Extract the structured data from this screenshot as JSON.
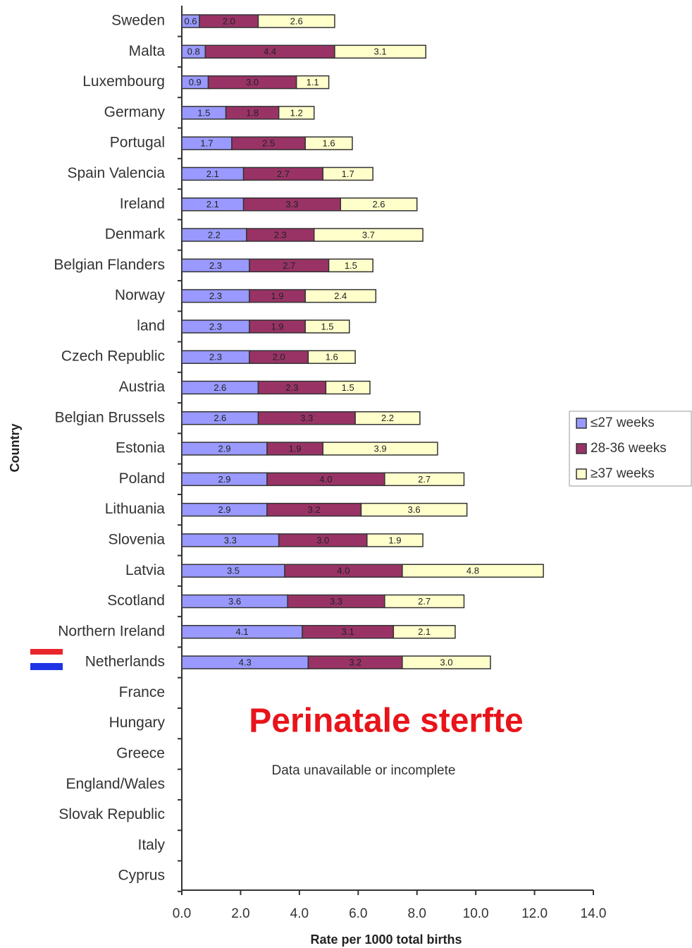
{
  "chart_data": {
    "type": "stacked-barh",
    "title": "Perinatale sterfte",
    "subtitle": "Data unavailable or incomplete",
    "x_label": "Rate per 1000 total births",
    "y_label": "Country",
    "categories": [
      "Sweden",
      "Malta",
      "Luxembourg",
      "Germany",
      "Portugal",
      "Spain Valencia",
      "Ireland",
      "Denmark",
      "Belgian Flanders",
      "Norway",
      "land",
      "Czech Republic",
      "Austria",
      "Belgian Brussels",
      "Estonia",
      "Poland",
      "Lithuania",
      "Slovenia",
      "Latvia",
      "Scotland",
      "Northern Ireland",
      "Netherlands",
      "France",
      "Hungary",
      "Greece",
      "England/Wales",
      "Slovak Republic",
      "Italy",
      "Cyprus"
    ],
    "series": [
      {
        "name": "≤27 weeks",
        "color": "#9999ff",
        "values": [
          0.6,
          0.8,
          0.9,
          1.5,
          1.7,
          2.1,
          2.1,
          2.2,
          2.3,
          2.3,
          2.3,
          2.3,
          2.6,
          2.6,
          2.9,
          2.9,
          2.9,
          3.3,
          3.5,
          3.6,
          4.1,
          4.3,
          null,
          null,
          null,
          null,
          null,
          null,
          null
        ],
        "value_labels": [
          "0.6",
          "0.8",
          "0.9",
          "1.5",
          "1.7",
          "2.1",
          "2.1",
          "2.2",
          "2.3",
          "2.3",
          "2.3",
          "2.3",
          "2.6",
          "2.6",
          "2.9",
          "2.9",
          "2.9",
          "3.3",
          "3.5",
          "3.6",
          "4.1",
          "4.3",
          null,
          null,
          null,
          null,
          null,
          null,
          null
        ]
      },
      {
        "name": "28-36 weeks",
        "color": "#993366",
        "values": [
          2,
          4.4,
          3,
          1.8,
          2.5,
          2.7,
          3.3,
          2.3,
          2.7,
          1.9,
          1.9,
          2,
          2.3,
          3.3,
          1.9,
          4,
          3.2,
          3,
          4,
          3.3,
          3.1,
          3.2,
          null,
          null,
          null,
          null,
          null,
          null,
          null
        ],
        "value_labels": [
          "2.0",
          "4.4",
          "3.0",
          "1.8",
          "2.5",
          "2.7",
          "3.3",
          "2.3",
          "2.7",
          "1.9",
          "1.9",
          "2.0",
          "2.3",
          "3.3",
          "1.9",
          "4.0",
          "3.2",
          "3.0",
          "4.0",
          "3.3",
          "3.1",
          "3.2",
          null,
          null,
          null,
          null,
          null,
          null,
          null
        ]
      },
      {
        "name": "≥37 weeks",
        "color": "#ffffcc",
        "values": [
          2.6,
          3.1,
          1.1,
          1.2,
          1.6,
          1.7,
          2.6,
          3.7,
          1.5,
          2.4,
          1.5,
          1.6,
          1.5,
          2.2,
          3.9,
          2.7,
          3.6,
          1.9,
          4.8,
          2.7,
          2.1,
          3,
          null,
          null,
          null,
          null,
          null,
          null,
          null
        ],
        "value_labels": [
          "2.6",
          "3.1",
          "1.1",
          "1.2",
          "1.6",
          "1.7",
          "2.6",
          "3.7",
          "1.5",
          "2.4",
          "1.5",
          "1.6",
          "1.5",
          "2.2",
          "3.9",
          "2.7",
          "3.6",
          "1.9",
          "4.8",
          "2.7",
          "2.1",
          "3.0",
          null,
          null,
          null,
          null,
          null,
          null,
          null
        ]
      }
    ],
    "xlim": [
      0,
      14
    ],
    "xticks": [
      {
        "value": 0,
        "label": "0.0"
      },
      {
        "value": 2,
        "label": "2.0"
      },
      {
        "value": 4,
        "label": "4.0"
      },
      {
        "value": 6,
        "label": "6.0"
      },
      {
        "value": 8,
        "label": "8.0"
      },
      {
        "value": 10,
        "label": "10.0"
      },
      {
        "value": 12,
        "label": "12.0"
      },
      {
        "value": 14,
        "label": "14.0"
      }
    ],
    "legend": "right"
  }
}
